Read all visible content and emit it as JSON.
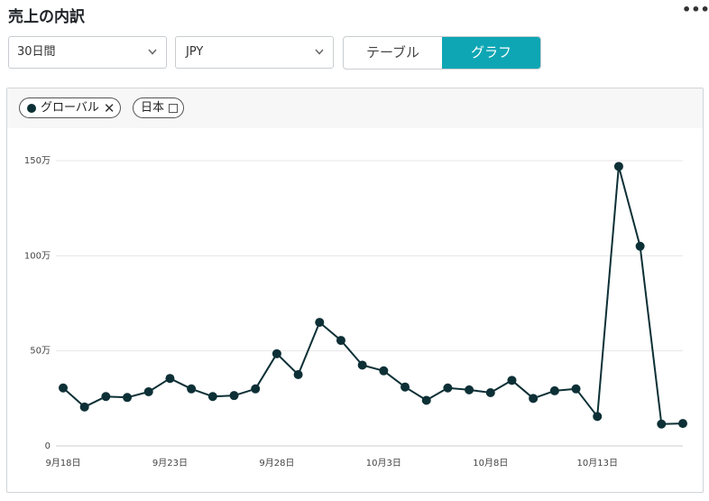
{
  "header": {
    "title": "売上の内訳",
    "more_label": "•••"
  },
  "filters": {
    "period": {
      "value": "30日間"
    },
    "currency": {
      "value": "JPY"
    }
  },
  "view_toggle": {
    "options": [
      "テーブル",
      "グラフ"
    ],
    "active": "グラフ"
  },
  "legend_chips": [
    {
      "label": "グローバル",
      "action": "✕",
      "selected": true
    },
    {
      "label": "日本",
      "selected": false
    }
  ],
  "colors": {
    "accent": "#0ea6b4",
    "series": "#0d3036",
    "grid": "#e6e6e6"
  },
  "chart_data": {
    "type": "line",
    "title": "",
    "xlabel": "",
    "ylabel": "",
    "x": [
      "9月18日",
      "9月19日",
      "9月20日",
      "9月21日",
      "9月22日",
      "9月23日",
      "9月24日",
      "9月25日",
      "9月26日",
      "9月27日",
      "9月28日",
      "9月29日",
      "9月30日",
      "10月1日",
      "10月2日",
      "10月3日",
      "10月4日",
      "10月5日",
      "10月6日",
      "10月7日",
      "10月8日",
      "10月9日",
      "10月10日",
      "10月11日",
      "10月12日",
      "10月13日",
      "10月14日",
      "10月15日",
      "10月16日",
      "10月17日"
    ],
    "series": [
      {
        "name": "グローバル",
        "values": [
          305000,
          205000,
          260000,
          255000,
          285000,
          355000,
          300000,
          260000,
          265000,
          300000,
          485000,
          375000,
          650000,
          555000,
          425000,
          395000,
          310000,
          240000,
          305000,
          295000,
          280000,
          345000,
          250000,
          290000,
          300000,
          155000,
          1470000,
          1050000,
          115000,
          118000
        ]
      }
    ],
    "xticks": [
      "9月18日",
      "9月23日",
      "9月28日",
      "10月3日",
      "10月8日",
      "10月13日"
    ],
    "yticks": [
      {
        "value": 0,
        "label": "0"
      },
      {
        "value": 500000,
        "label": "50万"
      },
      {
        "value": 1000000,
        "label": "100万"
      },
      {
        "value": 1500000,
        "label": "150万"
      }
    ],
    "ylim": [
      0,
      1500000
    ],
    "grid": true,
    "legend": "top-left"
  }
}
